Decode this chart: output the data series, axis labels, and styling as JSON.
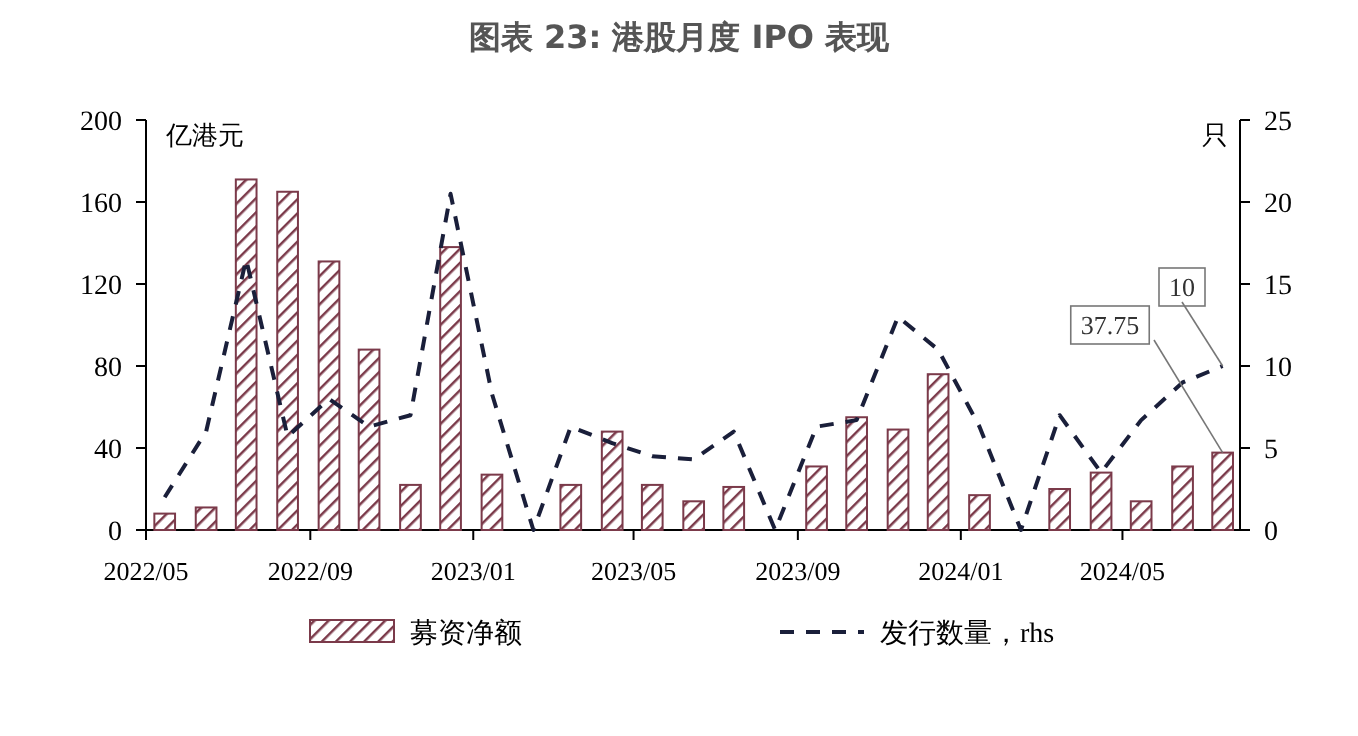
{
  "chart_data": {
    "type": "bar",
    "title": "图表 23: 港股月度 IPO 表现",
    "ylabel": "亿港元",
    "y2label": "只",
    "x": [
      "2022-05-15",
      "2022-06-15",
      "2022-07-15",
      "2022-08-15",
      "2022-09-15",
      "2022-10-15",
      "2022-11-15",
      "2022-12-15",
      "2023-01-15",
      "2023-02-15",
      "2023-03-15",
      "2023-04-15",
      "2023-05-15",
      "2023-06-15",
      "2023-07-15",
      "2023-08-15",
      "2023-09-15",
      "2023-10-15",
      "2023-11-15",
      "2023-12-15",
      "2024-01-15",
      "2024-02-15",
      "2024-03-15",
      "2024-04-15",
      "2024-05-15",
      "2024-06-15",
      "2024-07-15"
    ],
    "series": [
      {
        "name": "募资净额",
        "color": "#7b3a4a",
        "values": [
          8,
          11,
          171,
          165,
          131,
          88,
          22,
          138,
          27,
          0,
          22,
          48,
          22,
          14,
          21,
          0,
          31,
          55,
          49,
          76,
          17,
          0,
          20,
          28,
          14,
          31,
          37.75
        ]
      },
      {
        "name": "发行数量，rhs",
        "type": "line",
        "axis": "y2",
        "color": "#1a1f3a",
        "line_style": "dashed",
        "values": [
          2,
          6,
          16.5,
          5.7,
          8,
          6.3,
          7,
          20.5,
          8.3,
          0,
          6.3,
          5.3,
          4.5,
          4.3,
          6,
          0,
          6.3,
          6.7,
          13,
          11,
          6.3,
          0,
          7,
          3.5,
          6.7,
          9,
          10
        ]
      }
    ],
    "xlim": [
      "2022-05-01",
      "2024-07-28"
    ],
    "xticks": [
      {
        "value": "2022-05",
        "label": "2022/05"
      },
      {
        "value": "2022-09",
        "label": "2022/09"
      },
      {
        "value": "2023-01",
        "label": "2023/01"
      },
      {
        "value": "2023-05",
        "label": "2023/05"
      },
      {
        "value": "2023-09",
        "label": "2023/09"
      },
      {
        "value": "2024-01",
        "label": "2024/01"
      },
      {
        "value": "2024-05",
        "label": "2024/05"
      }
    ],
    "ylim": [
      0,
      200
    ],
    "yticks": [
      0,
      40,
      80,
      120,
      160,
      200
    ],
    "y2lim": [
      0,
      25
    ],
    "y2ticks": [
      0,
      5,
      10,
      15,
      20,
      25
    ],
    "grid": false,
    "legend": "bottom",
    "annotations": [
      {
        "text": "37.75",
        "x": "2024-07-15",
        "y": 37.75
      },
      {
        "text": "10",
        "x": "2024-07-15",
        "y": 80
      }
    ]
  }
}
